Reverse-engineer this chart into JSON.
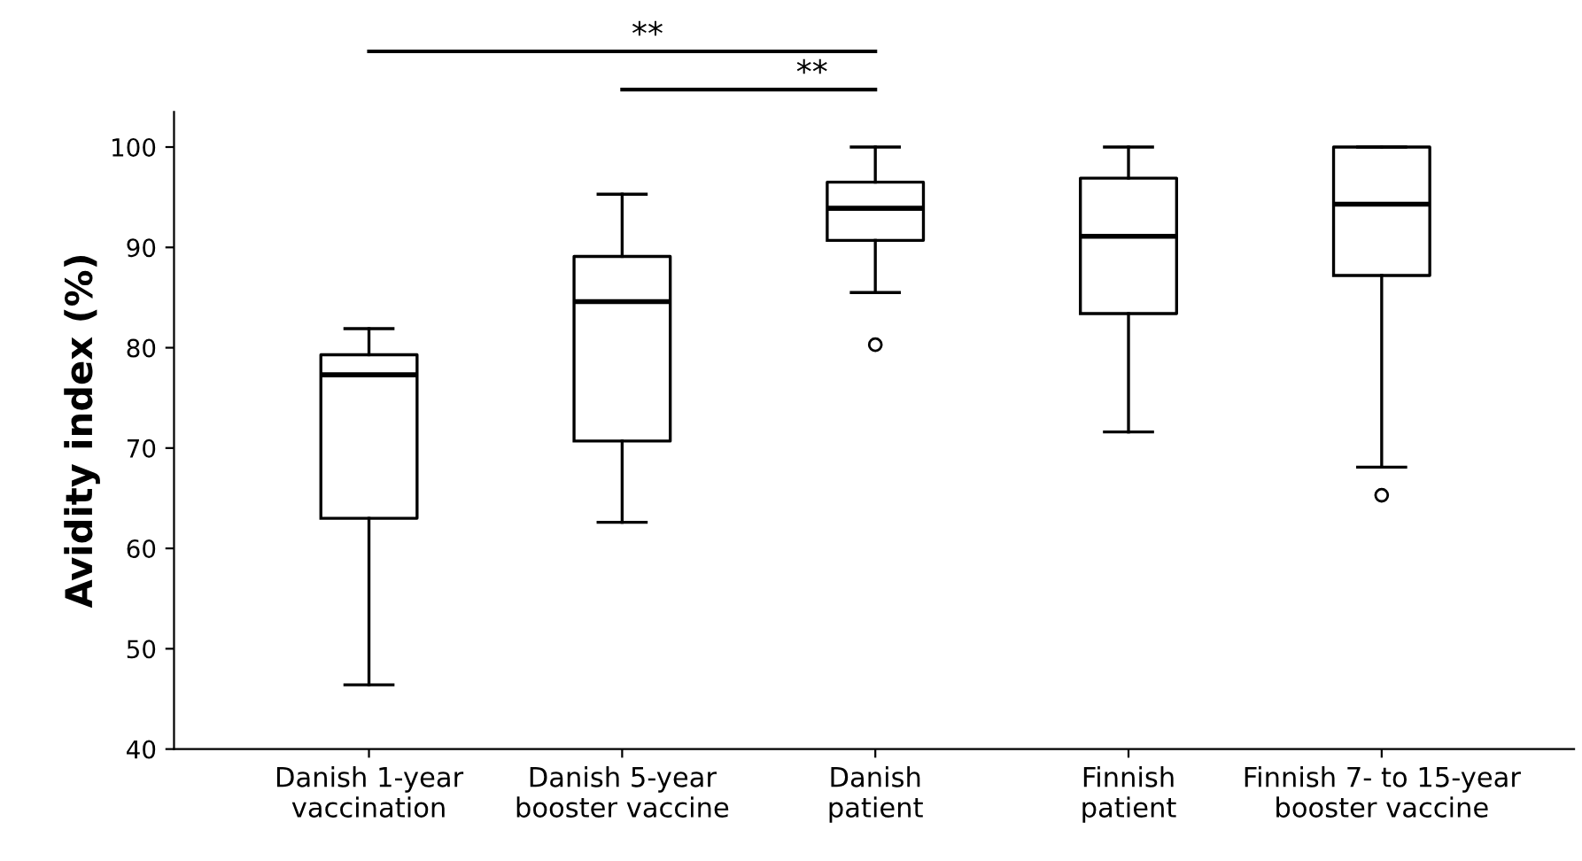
{
  "chart_data": {
    "type": "box",
    "ylabel": "Avidity index (%)",
    "categories": [
      "Danish 1-year\nvaccination",
      "Danish 5-year\nbooster vaccine",
      "Danish\npatient",
      "Finnish\npatient",
      "Finnish 7- to 15-year\nbooster vaccine"
    ],
    "boxes": [
      {
        "low": 46.4,
        "q1": 63.0,
        "median": 77.3,
        "q3": 79.3,
        "high": 81.9
      },
      {
        "low": 62.6,
        "q1": 70.7,
        "median": 84.6,
        "q3": 89.1,
        "high": 95.3
      },
      {
        "low": 85.5,
        "q1": 90.7,
        "median": 93.9,
        "q3": 96.5,
        "high": 100,
        "outliers": [
          80.3
        ]
      },
      {
        "low": 71.6,
        "q1": 83.4,
        "median": 91.1,
        "q3": 96.9,
        "high": 100
      },
      {
        "low": 68.1,
        "q1": 87.2,
        "median": 94.3,
        "q3": 100,
        "high": 100,
        "outliers": [
          65.3
        ]
      }
    ],
    "ylim": [
      40,
      103.5
    ],
    "yticks": [
      40,
      50,
      60,
      70,
      80,
      90,
      100
    ],
    "annotations": [
      "**",
      "**"
    ]
  }
}
